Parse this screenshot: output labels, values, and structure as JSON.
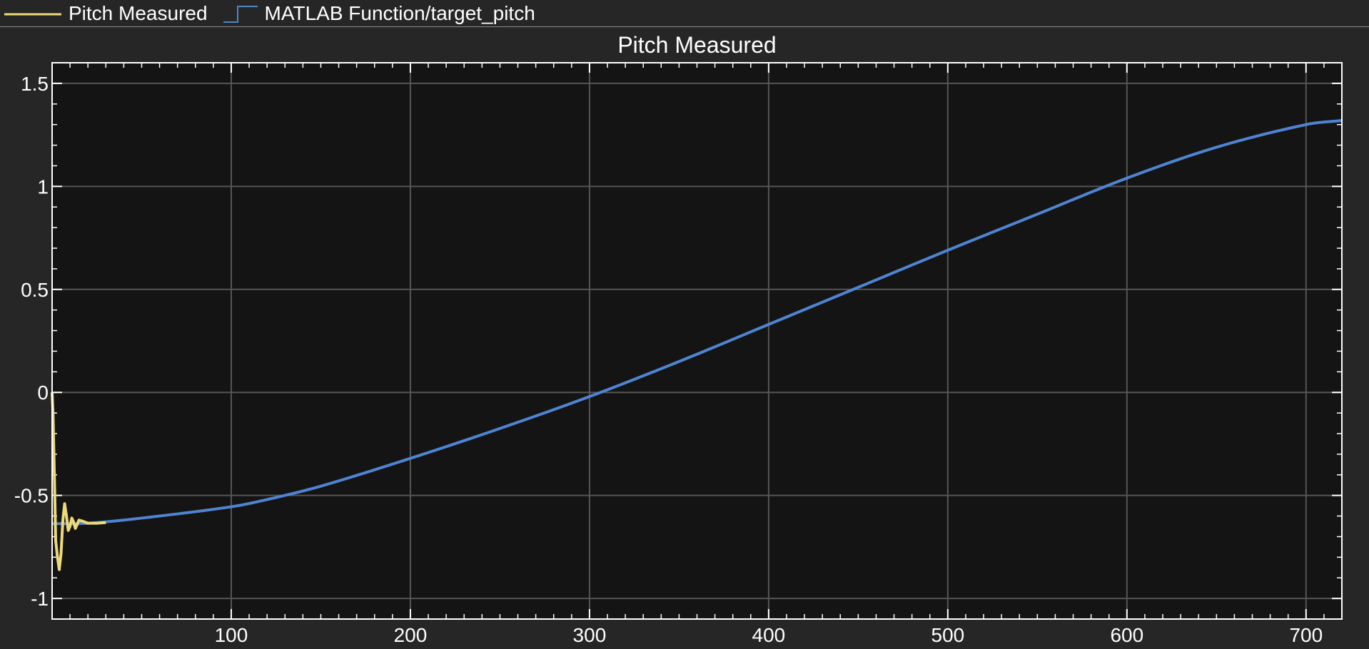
{
  "legend": {
    "items": [
      {
        "label": "Pitch Measured",
        "color": "#EDD977",
        "style": "line"
      },
      {
        "label": "MATLAB Function/target_pitch",
        "color": "#4F84D2",
        "style": "stair"
      }
    ]
  },
  "colors": {
    "background": "#262626",
    "axes_background": "#141414",
    "grid": "#555555",
    "axes_frame": "#ffffff",
    "text": "#ffffff"
  },
  "chart_data": {
    "type": "line",
    "title": "Pitch Measured",
    "xlabel": "",
    "ylabel": "",
    "xlim": [
      0,
      720
    ],
    "ylim": [
      -1.1,
      1.6
    ],
    "xticks": [
      100,
      200,
      300,
      400,
      500,
      600,
      700
    ],
    "yticks": [
      -1,
      -0.5,
      0,
      0.5,
      1,
      1.5
    ],
    "ytick_labels": [
      "-1",
      "-0.5",
      "0",
      "0.5",
      "1",
      "1.5"
    ],
    "grid": true,
    "legend_position": "top-left",
    "series": [
      {
        "name": "Pitch Measured",
        "color": "#EDD977",
        "x": [
          0,
          0.5,
          1,
          1.5,
          2,
          3,
          4,
          5,
          6,
          7,
          8,
          9,
          10,
          11,
          12,
          13,
          14,
          15,
          17,
          20,
          25,
          30
        ],
        "y": [
          0,
          -0.1,
          -0.3,
          -0.5,
          -0.72,
          -0.8,
          -0.86,
          -0.78,
          -0.62,
          -0.54,
          -0.6,
          -0.67,
          -0.65,
          -0.61,
          -0.63,
          -0.66,
          -0.64,
          -0.62,
          -0.625,
          -0.635,
          -0.635,
          -0.632
        ]
      },
      {
        "name": "MATLAB Function/target_pitch",
        "color": "#4F84D2",
        "x": [
          0,
          20,
          50,
          100,
          120,
          150,
          200,
          250,
          300,
          350,
          400,
          450,
          500,
          550,
          600,
          650,
          700,
          720
        ],
        "y": [
          -0.637,
          -0.635,
          -0.61,
          -0.555,
          -0.52,
          -0.455,
          -0.32,
          -0.175,
          -0.02,
          0.15,
          0.33,
          0.51,
          0.69,
          0.865,
          1.04,
          1.19,
          1.3,
          1.32
        ]
      }
    ]
  }
}
